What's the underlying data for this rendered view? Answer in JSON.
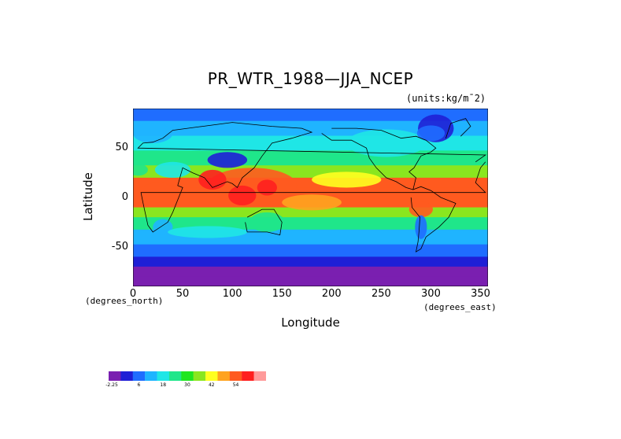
{
  "chart_data": {
    "type": "heatmap",
    "title": "PR_WTR_1988—JJA_NCEP",
    "units": "(units:kg/m¯2)",
    "xlabel": "Longitude",
    "ylabel": "Latitude",
    "x_unit_label": "(degrees_east)",
    "y_unit_label": "(degrees_north)",
    "xlim": [
      0,
      357.5
    ],
    "ylim": [
      -90,
      90
    ],
    "x_ticks": [
      0,
      50,
      100,
      150,
      200,
      250,
      300,
      350
    ],
    "y_ticks": [
      50,
      0,
      -50
    ],
    "colorbar": {
      "colors": [
        "#7a1fb0",
        "#1f1fd6",
        "#1f6dff",
        "#1fb4ff",
        "#1fe6e6",
        "#1fe68a",
        "#1fe61f",
        "#8ae61f",
        "#ffff1f",
        "#ffa31f",
        "#ff5a1f",
        "#ff1f1f",
        "#ff9a9a"
      ],
      "labels": [
        "-2.25",
        "6",
        "18",
        "30",
        "42",
        "54"
      ]
    },
    "latitude_profile": [
      {
        "lat": 85,
        "value": 12
      },
      {
        "lat": 70,
        "value": 15
      },
      {
        "lat": 55,
        "value": 20
      },
      {
        "lat": 40,
        "value": 26
      },
      {
        "lat": 25,
        "value": 36
      },
      {
        "lat": 15,
        "value": 48
      },
      {
        "lat": 5,
        "value": 50
      },
      {
        "lat": -5,
        "value": 46
      },
      {
        "lat": -15,
        "value": 34
      },
      {
        "lat": -25,
        "value": 24
      },
      {
        "lat": -40,
        "value": 16
      },
      {
        "lat": -55,
        "value": 10
      },
      {
        "lat": -65,
        "value": 6
      },
      {
        "lat": -75,
        "value": 2
      },
      {
        "lat": -85,
        "value": -1
      }
    ]
  }
}
